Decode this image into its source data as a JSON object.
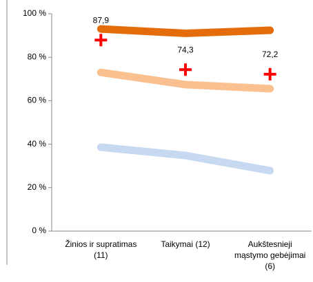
{
  "chart_data": {
    "type": "line",
    "categories": [
      "Žinios ir supratimas\n(11)",
      "Taikymai (12)",
      "Aukštesnieji\nmąstymo gebėjimai\n(6)"
    ],
    "series": [
      {
        "color": "#e46c0a",
        "values": [
          93,
          91,
          92.4
        ]
      },
      {
        "color": "#fac090",
        "values": [
          73,
          67.4,
          65.5
        ]
      },
      {
        "color": "#c6d9f1",
        "values": [
          38.6,
          34.8,
          27.8
        ]
      },
      {
        "color": "#ff0000",
        "marker": "cross",
        "values": [
          87.9,
          74.3,
          72.2
        ],
        "value_labels": [
          "87,9",
          "74,3",
          "72,2"
        ]
      }
    ],
    "ylim": [
      0,
      100
    ],
    "yticks": [
      {
        "value": 0,
        "label": "0 %"
      },
      {
        "value": 20,
        "label": "20 %"
      },
      {
        "value": 40,
        "label": "40 %"
      },
      {
        "value": 60,
        "label": "60 %"
      },
      {
        "value": 80,
        "label": "80 %"
      },
      {
        "value": 100,
        "label": "100 %"
      }
    ]
  }
}
